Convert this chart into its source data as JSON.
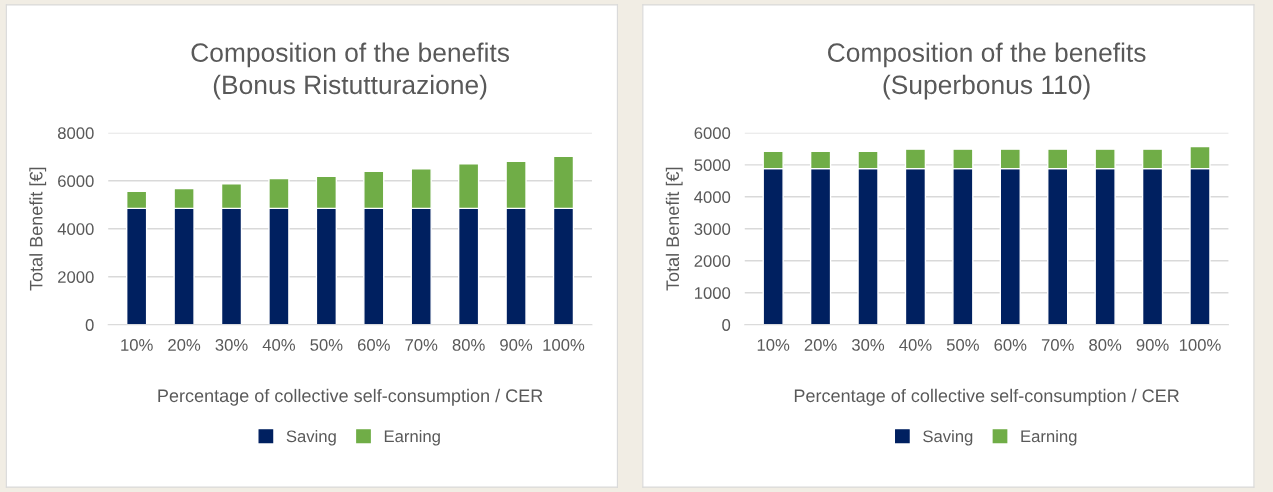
{
  "chart_data": [
    {
      "type": "bar",
      "stacked": true,
      "title": "Composition of the benefits\n(Bonus Ristutturazione)",
      "xlabel": "Percentage of collective self-consumption / CER",
      "ylabel": "Total Benefit [€]",
      "categories": [
        "10%",
        "20%",
        "30%",
        "40%",
        "50%",
        "60%",
        "70%",
        "80%",
        "90%",
        "100%"
      ],
      "series": [
        {
          "name": "Saving",
          "color": "#002060",
          "values": [
            4850,
            4850,
            4850,
            4850,
            4850,
            4850,
            4850,
            4850,
            4850,
            4850
          ]
        },
        {
          "name": "Earning",
          "color": "#70ad47",
          "values": [
            710,
            830,
            1030,
            1240,
            1340,
            1550,
            1650,
            1860,
            1960,
            2170
          ]
        }
      ],
      "ylim": [
        0,
        8000
      ],
      "yticks": [
        0,
        2000,
        4000,
        6000,
        8000
      ],
      "grid": "y",
      "legend": "bottom"
    },
    {
      "type": "bar",
      "stacked": true,
      "title": "Composition of the benefits\n(Superbonus 110)",
      "xlabel": "Percentage of collective self-consumption / CER",
      "ylabel": "Total Benefit [€]",
      "categories": [
        "10%",
        "20%",
        "30%",
        "40%",
        "50%",
        "60%",
        "70%",
        "80%",
        "90%",
        "100%"
      ],
      "series": [
        {
          "name": "Saving",
          "color": "#002060",
          "values": [
            4880,
            4880,
            4880,
            4880,
            4880,
            4880,
            4880,
            4880,
            4880,
            4880
          ]
        },
        {
          "name": "Earning",
          "color": "#70ad47",
          "values": [
            540,
            540,
            540,
            610,
            610,
            610,
            610,
            610,
            610,
            690
          ]
        }
      ],
      "ylim": [
        0,
        6000
      ],
      "yticks": [
        0,
        1000,
        2000,
        3000,
        4000,
        5000,
        6000
      ],
      "grid": "y",
      "legend": "bottom"
    }
  ]
}
